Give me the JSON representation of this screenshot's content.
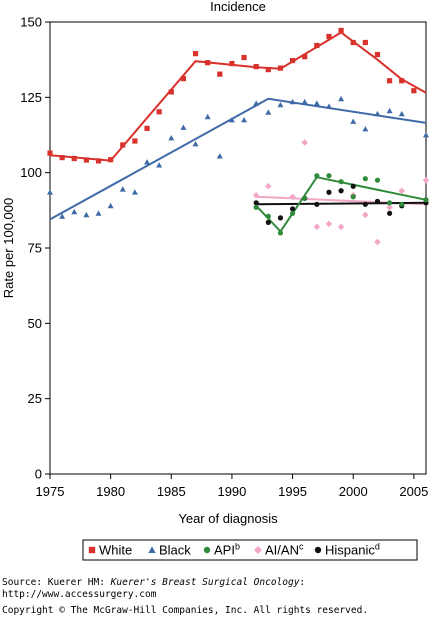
{
  "chart_data": {
    "type": "scatter",
    "title": "Incidence",
    "xlabel": "Year of diagnosis",
    "ylabel": "Rate per 100,000",
    "xlim": [
      1975,
      2006
    ],
    "ylim": [
      0,
      150
    ],
    "xticks": [
      1975,
      1980,
      1985,
      1990,
      1995,
      2000,
      2005
    ],
    "yticks": [
      0,
      25,
      50,
      75,
      100,
      125,
      150
    ],
    "grid": false,
    "legend_position": "bottom",
    "series": [
      {
        "name": "White",
        "color": "#d9312b",
        "marker": "square",
        "points": [
          [
            1975,
            106.5
          ],
          [
            1976,
            105
          ],
          [
            1977,
            104.7
          ],
          [
            1978,
            104.2
          ],
          [
            1979,
            103.9
          ],
          [
            1980,
            104.3
          ],
          [
            1981,
            109.2
          ],
          [
            1982,
            110.5
          ],
          [
            1983,
            114.7
          ],
          [
            1984,
            120.2
          ],
          [
            1985,
            126.8
          ],
          [
            1986,
            131.2
          ],
          [
            1987,
            139.5
          ],
          [
            1988,
            136.5
          ],
          [
            1989,
            132.7
          ],
          [
            1990,
            136.2
          ],
          [
            1991,
            138.2
          ],
          [
            1992,
            135.2
          ],
          [
            1993,
            134.2
          ],
          [
            1994,
            134.7
          ],
          [
            1995,
            137.2
          ],
          [
            1996,
            138.5
          ],
          [
            1997,
            142.2
          ],
          [
            1998,
            145.2
          ],
          [
            1999,
            147.2
          ],
          [
            2000,
            143.2
          ],
          [
            2001,
            143.2
          ],
          [
            2002,
            139.2
          ],
          [
            2003,
            130.5
          ],
          [
            2004,
            130.5
          ],
          [
            2005,
            127.2
          ]
        ],
        "trend": [
          [
            1975,
            105.8
          ],
          [
            1980,
            104
          ],
          [
            1987,
            137
          ],
          [
            1992,
            135
          ],
          [
            1994,
            134.5
          ],
          [
            1999,
            146.5
          ],
          [
            2002,
            137.5
          ],
          [
            2004,
            131
          ],
          [
            2006,
            126.5
          ]
        ]
      },
      {
        "name": "Black",
        "color": "#3f6aa8",
        "marker": "triangle",
        "points": [
          [
            1975,
            93.5
          ],
          [
            1976,
            85.5
          ],
          [
            1977,
            87
          ],
          [
            1978,
            86
          ],
          [
            1979,
            86.5
          ],
          [
            1980,
            89
          ],
          [
            1981,
            94.5
          ],
          [
            1982,
            93.5
          ],
          [
            1983,
            103.5
          ],
          [
            1984,
            102.5
          ],
          [
            1985,
            111.5
          ],
          [
            1986,
            115
          ],
          [
            1987,
            109.5
          ],
          [
            1988,
            118.5
          ],
          [
            1989,
            105.5
          ],
          [
            1990,
            117.5
          ],
          [
            1991,
            117.5
          ],
          [
            1992,
            123
          ],
          [
            1993,
            120
          ],
          [
            1994,
            122.5
          ],
          [
            1995,
            123.5
          ],
          [
            1996,
            123.5
          ],
          [
            1997,
            123
          ],
          [
            1998,
            122
          ],
          [
            1999,
            124.5
          ],
          [
            2000,
            117
          ],
          [
            2001,
            114.5
          ],
          [
            2002,
            119.5
          ],
          [
            2003,
            120.5
          ],
          [
            2004,
            119.5
          ],
          [
            2006,
            112.5
          ]
        ],
        "trend": [
          [
            1975,
            84.5
          ],
          [
            1993,
            124.5
          ],
          [
            2006,
            116.5
          ]
        ]
      },
      {
        "name": "API",
        "superscript": "b",
        "color": "#2f8a3a",
        "marker": "circle",
        "points": [
          [
            1992,
            88.5
          ],
          [
            1993,
            85.5
          ],
          [
            1994,
            80
          ],
          [
            1995,
            86.5
          ],
          [
            1996,
            91.5
          ],
          [
            1997,
            99
          ],
          [
            1998,
            99
          ],
          [
            1999,
            97
          ],
          [
            2000,
            92
          ],
          [
            2001,
            98
          ],
          [
            2002,
            97.5
          ],
          [
            2003,
            90
          ],
          [
            2004,
            89.5
          ],
          [
            2006,
            91
          ]
        ],
        "trend": [
          [
            1992,
            89
          ],
          [
            1994,
            80.5
          ],
          [
            1997,
            98.5
          ],
          [
            2006,
            91
          ]
        ]
      },
      {
        "name": "AI/AN",
        "superscript": "c",
        "color": "#f2a6c8",
        "marker": "diamond",
        "points": [
          [
            1992,
            92.5
          ],
          [
            1993,
            95.5
          ],
          [
            1995,
            92
          ],
          [
            1996,
            110
          ],
          [
            1997,
            82
          ],
          [
            1998,
            83
          ],
          [
            1999,
            82
          ],
          [
            2000,
            92.5
          ],
          [
            2001,
            86
          ],
          [
            2002,
            77
          ],
          [
            2003,
            88.5
          ],
          [
            2004,
            94
          ],
          [
            2006,
            97.5
          ]
        ],
        "trend": [
          [
            1992,
            92
          ],
          [
            2006,
            89.5
          ]
        ]
      },
      {
        "name": "Hispanic",
        "superscript": "d",
        "color": "#111111",
        "marker": "circle",
        "points": [
          [
            1992,
            90
          ],
          [
            1993,
            83.5
          ],
          [
            1994,
            85
          ],
          [
            1995,
            88
          ],
          [
            1996,
            91.5
          ],
          [
            1997,
            89.5
          ],
          [
            1998,
            93.5
          ],
          [
            1999,
            94
          ],
          [
            2000,
            95.5
          ],
          [
            2001,
            89.5
          ],
          [
            2002,
            90.5
          ],
          [
            2003,
            86.5
          ],
          [
            2004,
            89
          ],
          [
            2006,
            90
          ]
        ],
        "trend": [
          [
            1992,
            89.5
          ],
          [
            2006,
            90
          ]
        ]
      }
    ]
  },
  "footer": {
    "source_prefix": "Source: Kuerer HM: ",
    "source_title": "Kuerer's Breast Surgical Oncology",
    "source_suffix": ":",
    "url": "http://www.accessurgery.com",
    "copyright": "Copyright © The McGraw-Hill Companies, Inc. All rights reserved."
  }
}
